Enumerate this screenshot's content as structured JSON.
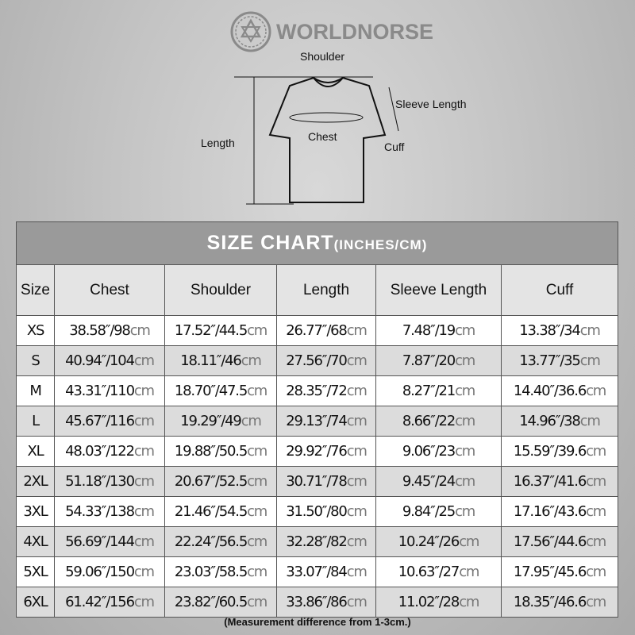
{
  "brand": {
    "name": "WORLDNORSE"
  },
  "diagram": {
    "shoulder": "Shoulder",
    "sleeve_length": "Sleeve Length",
    "chest": "Chest",
    "length": "Length",
    "cuff": "Cuff"
  },
  "table": {
    "title": "SIZE CHART",
    "title_units": "(INCHES/CM)",
    "columns": [
      "Size",
      "Chest",
      "Shoulder",
      "Length",
      "Sleeve Length",
      "Cuff"
    ],
    "unit": "cm",
    "rows": [
      {
        "size": "XS",
        "values": [
          "38.58″/98",
          "17.52″/44.5",
          "26.77″/68",
          "7.48″/19",
          "13.38″/34"
        ]
      },
      {
        "size": "S",
        "values": [
          "40.94″/104",
          "18.11″/46",
          "27.56″/70",
          "7.87″/20",
          "13.77″/35"
        ]
      },
      {
        "size": "M",
        "values": [
          "43.31″/110",
          "18.70″/47.5",
          "28.35″/72",
          "8.27″/21",
          "14.40″/36.6"
        ]
      },
      {
        "size": "L",
        "values": [
          "45.67″/116",
          "19.29″/49",
          "29.13″/74",
          "8.66″/22",
          "14.96″/38"
        ]
      },
      {
        "size": "XL",
        "values": [
          "48.03″/122",
          "19.88″/50.5",
          "29.92″/76",
          "9.06″/23",
          "15.59″/39.6"
        ]
      },
      {
        "size": "2XL",
        "values": [
          "51.18″/130",
          "20.67″/52.5",
          "30.71″/78",
          "9.45″/24",
          "16.37″/41.6"
        ]
      },
      {
        "size": "3XL",
        "values": [
          "54.33″/138",
          "21.46″/54.5",
          "31.50″/80",
          "9.84″/25",
          "17.16″/43.6"
        ]
      },
      {
        "size": "4XL",
        "values": [
          "56.69″/144",
          "22.24″/56.5",
          "32.28″/82",
          "10.24″/26",
          "17.56″/44.6"
        ]
      },
      {
        "size": "5XL",
        "values": [
          "59.06″/150",
          "23.03″/58.5",
          "33.07″/84",
          "10.63″/27",
          "17.95″/45.6"
        ]
      },
      {
        "size": "6XL",
        "values": [
          "61.42″/156",
          "23.82″/60.5",
          "33.86″/86",
          "11.02″/28",
          "18.35″/46.6"
        ]
      }
    ]
  },
  "note": "(Measurement difference from 1-3cm.)"
}
